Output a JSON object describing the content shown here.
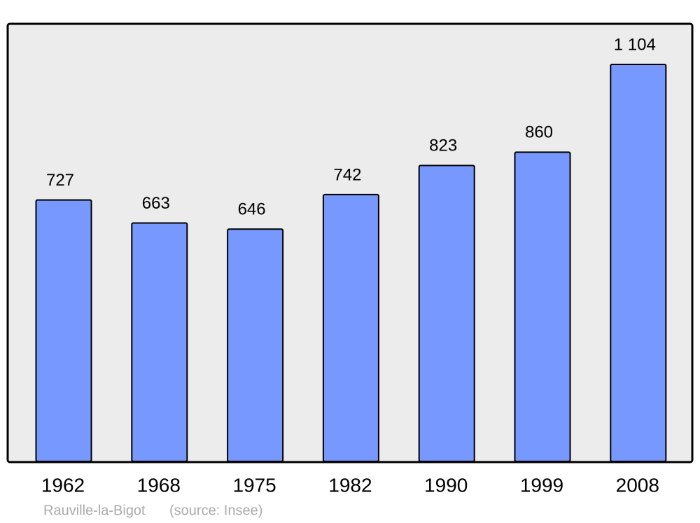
{
  "chart_data": {
    "type": "bar",
    "categories": [
      "1962",
      "1968",
      "1975",
      "1982",
      "1990",
      "1999",
      "2008"
    ],
    "values": [
      727,
      663,
      646,
      742,
      823,
      860,
      1104
    ],
    "value_labels": [
      "727",
      "663",
      "646",
      "742",
      "823",
      "860",
      "1 104"
    ],
    "color": "#7799ff",
    "footer": {
      "place": "Rauville-la-Bigot",
      "source": "(source: Insee)"
    }
  }
}
